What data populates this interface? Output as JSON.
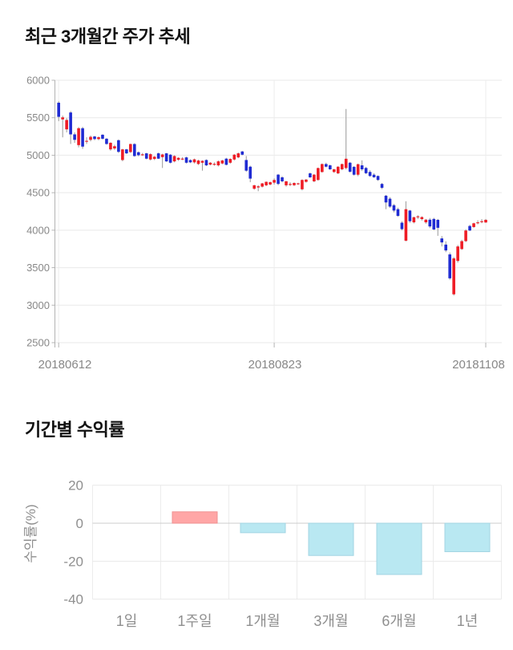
{
  "sections": {
    "price_trend": {
      "title": "최근 3개월간 주가 추세"
    },
    "returns": {
      "title": "기간별 수익률"
    }
  },
  "chart_data": [
    {
      "type": "candlestick",
      "title": "최근 3개월간 주가 추세",
      "y_ticks": [
        6000,
        5500,
        5000,
        4500,
        4000,
        3500,
        3000,
        2500
      ],
      "ylim": [
        2500,
        6000
      ],
      "x_labels": [
        "20180612",
        "20180823",
        "20181108"
      ],
      "x_grid_indices": [
        0,
        54,
        107
      ],
      "grid": true,
      "up_color": "#ef1c25",
      "down_color": "#1f2bd3",
      "wick_color": "#999999",
      "candles_format": [
        "open",
        "high",
        "low",
        "close"
      ],
      "candles": [
        [
          5700,
          5720,
          5455,
          5512
        ],
        [
          5478,
          5528,
          5238,
          5505
        ],
        [
          5345,
          5495,
          5305,
          5470
        ],
        [
          5570,
          5588,
          5150,
          5278
        ],
        [
          5278,
          5305,
          5165,
          5205
        ],
        [
          5135,
          5375,
          5105,
          5360
        ],
        [
          5360,
          5378,
          5085,
          5115
        ],
        [
          5185,
          5240,
          5150,
          5192
        ],
        [
          5205,
          5262,
          5185,
          5245
        ],
        [
          5250,
          5258,
          5200,
          5215
        ],
        [
          5215,
          5252,
          5200,
          5240
        ],
        [
          5273,
          5280,
          5210,
          5220
        ],
        [
          5220,
          5228,
          5140,
          5150
        ],
        [
          5078,
          5172,
          5060,
          5166
        ],
        [
          5090,
          5140,
          5070,
          5120
        ],
        [
          5200,
          5210,
          5030,
          5045
        ],
        [
          4936,
          5085,
          4920,
          5078
        ],
        [
          5078,
          5085,
          5015,
          5025
        ],
        [
          5042,
          5155,
          5030,
          5149
        ],
        [
          5149,
          5160,
          4980,
          4989
        ],
        [
          5040,
          5050,
          4985,
          5000
        ],
        [
          5008,
          5030,
          4990,
          5012
        ],
        [
          5025,
          5032,
          4945,
          4954
        ],
        [
          4943,
          5025,
          4930,
          5014
        ],
        [
          4950,
          4990,
          4935,
          4980
        ],
        [
          5025,
          5035,
          4950,
          4954
        ],
        [
          4975,
          5020,
          4830,
          5010
        ],
        [
          5025,
          5030,
          4910,
          4918
        ],
        [
          5007,
          5015,
          4890,
          4900
        ],
        [
          4918,
          5000,
          4905,
          4989
        ],
        [
          4940,
          4972,
          4925,
          4965
        ],
        [
          4950,
          4975,
          4935,
          4955
        ],
        [
          4971,
          4980,
          4890,
          4900
        ],
        [
          4935,
          4945,
          4895,
          4905
        ],
        [
          4905,
          4955,
          4890,
          4945
        ],
        [
          4883,
          4940,
          4870,
          4929
        ],
        [
          4900,
          4932,
          4794,
          4925
        ],
        [
          4936,
          4945,
          4855,
          4865
        ],
        [
          4875,
          4908,
          4865,
          4900
        ],
        [
          4880,
          4905,
          4860,
          4885
        ],
        [
          4865,
          4930,
          4850,
          4918
        ],
        [
          4890,
          4938,
          4880,
          4930
        ],
        [
          4954,
          4965,
          4865,
          4872
        ],
        [
          4900,
          4958,
          4888,
          4950
        ],
        [
          4943,
          5015,
          4930,
          5007
        ],
        [
          4971,
          5035,
          4960,
          5025
        ],
        [
          5050,
          5057,
          5000,
          5007
        ],
        [
          4936,
          4990,
          4780,
          4794
        ],
        [
          4847,
          4860,
          4640,
          4688
        ],
        [
          4553,
          4605,
          4540,
          4599
        ],
        [
          4570,
          4600,
          4520,
          4585
        ],
        [
          4581,
          4630,
          4570,
          4624
        ],
        [
          4599,
          4650,
          4588,
          4645
        ],
        [
          4610,
          4648,
          4598,
          4640
        ],
        [
          4634,
          4692,
          4608,
          4670
        ],
        [
          4741,
          4750,
          4600,
          4617
        ],
        [
          4705,
          4720,
          4638,
          4652
        ],
        [
          4599,
          4658,
          4580,
          4652
        ],
        [
          4610,
          4640,
          4588,
          4617
        ],
        [
          4600,
          4638,
          4590,
          4630
        ],
        [
          4620,
          4632,
          4605,
          4625
        ],
        [
          4546,
          4678,
          4530,
          4670
        ],
        [
          4645,
          4682,
          4635,
          4675
        ],
        [
          4758,
          4770,
          4698,
          4705
        ],
        [
          4652,
          4748,
          4640,
          4741
        ],
        [
          4670,
          4835,
          4660,
          4829
        ],
        [
          4776,
          4890,
          4768,
          4882
        ],
        [
          4882,
          4900,
          4838,
          4847
        ],
        [
          4865,
          4875,
          4805,
          4812
        ],
        [
          4776,
          4818,
          4765,
          4812
        ],
        [
          4758,
          4852,
          4748,
          4847
        ],
        [
          4812,
          4888,
          4800,
          4882
        ],
        [
          4829,
          5617,
          4810,
          4953
        ],
        [
          4900,
          4910,
          4768,
          4780
        ],
        [
          4845,
          4855,
          4728,
          4740
        ],
        [
          4740,
          4888,
          4720,
          4880
        ],
        [
          4865,
          4932,
          4790,
          4812
        ],
        [
          4830,
          4845,
          4748,
          4760
        ],
        [
          4777,
          4800,
          4712,
          4723
        ],
        [
          4740,
          4760,
          4698,
          4706
        ],
        [
          4723,
          4730,
          4658,
          4670
        ],
        [
          4617,
          4630,
          4548,
          4565
        ],
        [
          4460,
          4470,
          4280,
          4370
        ],
        [
          4420,
          4440,
          4298,
          4315
        ],
        [
          4333,
          4350,
          4238,
          4262
        ],
        [
          4280,
          4300,
          4178,
          4191
        ],
        [
          4100,
          4120,
          3998,
          4014
        ],
        [
          3860,
          4386,
          3852,
          4280
        ],
        [
          4262,
          4270,
          4098,
          4120
        ],
        [
          4105,
          4180,
          4090,
          4173
        ],
        [
          4180,
          4200,
          4148,
          4184
        ],
        [
          4148,
          4185,
          4128,
          4175
        ],
        [
          4105,
          4150,
          4085,
          4140
        ],
        [
          4140,
          4162,
          4028,
          4050
        ],
        [
          4150,
          4165,
          3998,
          4010
        ],
        [
          4138,
          4150,
          3925,
          4032
        ],
        [
          3890,
          3922,
          3783,
          3837
        ],
        [
          3808,
          3852,
          3708,
          3730
        ],
        [
          3677,
          3702,
          3338,
          3358
        ],
        [
          3145,
          3642,
          3128,
          3624
        ],
        [
          3590,
          3802,
          3568,
          3783
        ],
        [
          3748,
          3872,
          3738,
          3854
        ],
        [
          3854,
          4012,
          3842,
          3996
        ],
        [
          4056,
          4072,
          3988,
          3996
        ],
        [
          4042,
          4100,
          4032,
          4092
        ],
        [
          4095,
          4132,
          4078,
          4105
        ],
        [
          4115,
          4148,
          4092,
          4120
        ],
        [
          4103,
          4150,
          4098,
          4138
        ]
      ]
    },
    {
      "type": "bar",
      "title": "기간별 수익률",
      "ylabel": "수익률(%)",
      "categories": [
        "1일",
        "1주일",
        "1개월",
        "3개월",
        "6개월",
        "1년"
      ],
      "values": [
        0,
        6,
        -5,
        -17,
        -27,
        -15
      ],
      "y_ticks": [
        20,
        0,
        -20,
        -40
      ],
      "ylim": [
        -46,
        24
      ],
      "grid": true,
      "positive_color": "#ffa6a6",
      "positive_border": "#ef9292",
      "negative_color": "#b9e8f2",
      "negative_border": "#a3d5e3",
      "zero_line_color": "#cccccc",
      "label_color": "#8f8f8f"
    }
  ]
}
